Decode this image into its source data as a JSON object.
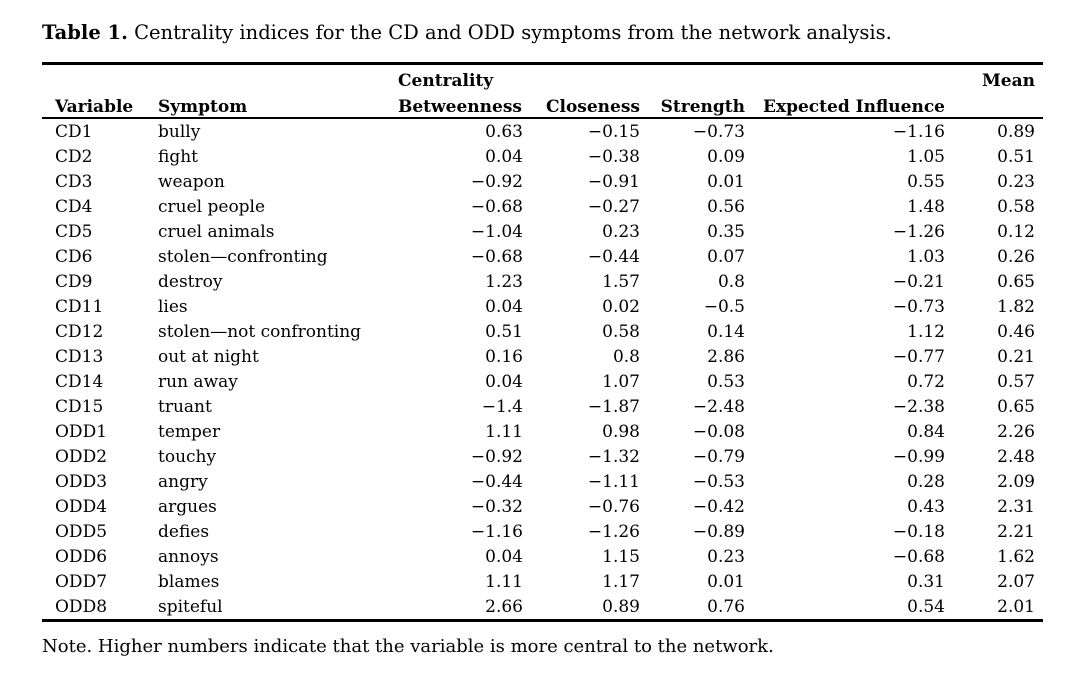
{
  "title": {
    "label": "Table 1.",
    "text": " Centrality indices for the CD and ODD symptoms from the network analysis."
  },
  "table": {
    "group_header": {
      "centrality": "Centrality",
      "mean": "Mean"
    },
    "columns": {
      "variable": "Variable",
      "symptom": "Symptom",
      "betweenness": "Betweenness",
      "closeness": "Closeness",
      "strength": "Strength",
      "expected_influence": "Expected Influence"
    },
    "rows": [
      {
        "variable": "CD1",
        "symptom": "bully",
        "betweenness": "0.63",
        "closeness": "−0.15",
        "strength": "−0.73",
        "expected_influence": "−1.16",
        "mean": "0.89"
      },
      {
        "variable": "CD2",
        "symptom": "fight",
        "betweenness": "0.04",
        "closeness": "−0.38",
        "strength": "0.09",
        "expected_influence": "1.05",
        "mean": "0.51"
      },
      {
        "variable": "CD3",
        "symptom": "weapon",
        "betweenness": "−0.92",
        "closeness": "−0.91",
        "strength": "0.01",
        "expected_influence": "0.55",
        "mean": "0.23"
      },
      {
        "variable": "CD4",
        "symptom": "cruel people",
        "betweenness": "−0.68",
        "closeness": "−0.27",
        "strength": "0.56",
        "expected_influence": "1.48",
        "mean": "0.58"
      },
      {
        "variable": "CD5",
        "symptom": "cruel animals",
        "betweenness": "−1.04",
        "closeness": "0.23",
        "strength": "0.35",
        "expected_influence": "−1.26",
        "mean": "0.12"
      },
      {
        "variable": "CD6",
        "symptom": "stolen—confronting",
        "betweenness": "−0.68",
        "closeness": "−0.44",
        "strength": "0.07",
        "expected_influence": "1.03",
        "mean": "0.26"
      },
      {
        "variable": "CD9",
        "symptom": "destroy",
        "betweenness": "1.23",
        "closeness": "1.57",
        "strength": "0.8",
        "expected_influence": "−0.21",
        "mean": "0.65"
      },
      {
        "variable": "CD11",
        "symptom": "lies",
        "betweenness": "0.04",
        "closeness": "0.02",
        "strength": "−0.5",
        "expected_influence": "−0.73",
        "mean": "1.82"
      },
      {
        "variable": "CD12",
        "symptom": "stolen—not confronting",
        "betweenness": "0.51",
        "closeness": "0.58",
        "strength": "0.14",
        "expected_influence": "1.12",
        "mean": "0.46"
      },
      {
        "variable": "CD13",
        "symptom": "out at night",
        "betweenness": "0.16",
        "closeness": "0.8",
        "strength": "2.86",
        "expected_influence": "−0.77",
        "mean": "0.21"
      },
      {
        "variable": "CD14",
        "symptom": "run away",
        "betweenness": "0.04",
        "closeness": "1.07",
        "strength": "0.53",
        "expected_influence": "0.72",
        "mean": "0.57"
      },
      {
        "variable": "CD15",
        "symptom": "truant",
        "betweenness": "−1.4",
        "closeness": "−1.87",
        "strength": "−2.48",
        "expected_influence": "−2.38",
        "mean": "0.65"
      },
      {
        "variable": "ODD1",
        "symptom": "temper",
        "betweenness": "1.11",
        "closeness": "0.98",
        "strength": "−0.08",
        "expected_influence": "0.84",
        "mean": "2.26"
      },
      {
        "variable": "ODD2",
        "symptom": "touchy",
        "betweenness": "−0.92",
        "closeness": "−1.32",
        "strength": "−0.79",
        "expected_influence": "−0.99",
        "mean": "2.48"
      },
      {
        "variable": "ODD3",
        "symptom": "angry",
        "betweenness": "−0.44",
        "closeness": "−1.11",
        "strength": "−0.53",
        "expected_influence": "0.28",
        "mean": "2.09"
      },
      {
        "variable": "ODD4",
        "symptom": "argues",
        "betweenness": "−0.32",
        "closeness": "−0.76",
        "strength": "−0.42",
        "expected_influence": "0.43",
        "mean": "2.31"
      },
      {
        "variable": "ODD5",
        "symptom": "defies",
        "betweenness": "−1.16",
        "closeness": "−1.26",
        "strength": "−0.89",
        "expected_influence": "−0.18",
        "mean": "2.21"
      },
      {
        "variable": "ODD6",
        "symptom": "annoys",
        "betweenness": "0.04",
        "closeness": "1.15",
        "strength": "0.23",
        "expected_influence": "−0.68",
        "mean": "1.62"
      },
      {
        "variable": "ODD7",
        "symptom": "blames",
        "betweenness": "1.11",
        "closeness": "1.17",
        "strength": "0.01",
        "expected_influence": "0.31",
        "mean": "2.07"
      },
      {
        "variable": "ODD8",
        "symptom": "spiteful",
        "betweenness": "2.66",
        "closeness": "0.89",
        "strength": "0.76",
        "expected_influence": "0.54",
        "mean": "2.01"
      }
    ]
  },
  "note": "Note. Higher numbers indicate that the variable is more central to the network."
}
